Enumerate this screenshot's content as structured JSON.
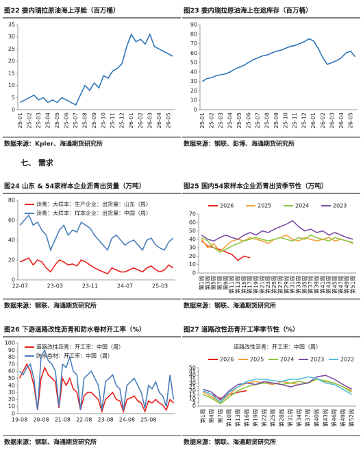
{
  "section_heading": "七、 需求",
  "chart_data": [
    {
      "type": "line",
      "title": "图22 委内瑞拉原油海上浮舱（百万桶）",
      "source": "数据来源：Kpler、海通期货研究所",
      "categories": [
        "25-01",
        null,
        "25-02",
        null,
        "25-03",
        null,
        "25-04",
        null,
        "25-05",
        null,
        "25-06",
        null,
        "25-07",
        null,
        "25-08",
        null,
        "25-09",
        null,
        "25-10",
        null,
        "25-11",
        null,
        "25-12",
        null,
        "26-01",
        null,
        "26-02",
        null,
        "26-03",
        null,
        "26-04",
        null,
        "26-05",
        null
      ],
      "values": [
        3,
        4,
        5,
        6,
        4,
        5,
        3,
        4,
        3,
        5,
        4,
        3,
        2,
        6,
        10,
        8,
        11,
        9,
        14,
        13,
        16,
        17,
        19,
        26,
        31,
        28,
        29,
        27,
        31,
        26,
        25,
        24,
        23,
        22
      ],
      "color": "#2e75b6",
      "ylim": [
        0,
        35
      ],
      "yticks": [
        0,
        5,
        10,
        15,
        20,
        25,
        30,
        35
      ]
    },
    {
      "type": "line",
      "title": "图23 委内瑞拉原油海上在途库存（百万桶）",
      "source": "数据来源：钢联、彭博、海通期货研究所",
      "categories": [
        "25-01",
        null,
        "25-02",
        null,
        "25-03",
        null,
        "25-04",
        null,
        "25-05",
        null,
        "25-06",
        null,
        "25-07",
        null,
        "25-08",
        null,
        "25-09",
        null,
        "25-10",
        null,
        "25-11",
        null,
        "25-12",
        null,
        "26-01",
        null,
        "26-02",
        null,
        "26-03",
        null,
        "26-04",
        null,
        "26-05",
        null
      ],
      "values": [
        30,
        33,
        34,
        36,
        37,
        38,
        40,
        43,
        45,
        47,
        50,
        53,
        55,
        57,
        58,
        60,
        62,
        63,
        65,
        67,
        68,
        70,
        72,
        75,
        73,
        65,
        55,
        48,
        50,
        52,
        55,
        60,
        62,
        56
      ],
      "color": "#2e75b6",
      "ylim": [
        0,
        90
      ],
      "yticks": [
        0,
        10,
        20,
        30,
        40,
        50,
        60,
        70,
        80,
        90
      ]
    },
    {
      "type": "line",
      "title": "图24 山东 & 54家样本企业沥青出货量（万吨）",
      "source": "数据来源：钢联、海通期货研究所",
      "categories": [
        "22-07",
        null,
        null,
        null,
        null,
        null,
        null,
        null,
        "23-03",
        null,
        null,
        null,
        null,
        null,
        null,
        null,
        "23-11",
        null,
        null,
        null,
        null,
        null,
        null,
        null,
        "24-07",
        null,
        null,
        null,
        null,
        null,
        null,
        null,
        "25-03",
        null,
        null,
        null
      ],
      "series": [
        {
          "name": "沥青：大样本：生产企业：出货量：山东（周）",
          "color": "#e8201b",
          "values": [
            18,
            20,
            22,
            15,
            20,
            18,
            12,
            8,
            15,
            20,
            18,
            15,
            16,
            14,
            20,
            18,
            15,
            12,
            10,
            8,
            6,
            12,
            10,
            8,
            8,
            10,
            12,
            10,
            8,
            12,
            14,
            10,
            8,
            10,
            15,
            12
          ]
        },
        {
          "name": "沥青：大样本：样本企业：出货量：中国（周）",
          "color": "#4a7ebb",
          "values": [
            55,
            60,
            65,
            55,
            58,
            50,
            45,
            30,
            40,
            50,
            55,
            45,
            50,
            48,
            58,
            55,
            52,
            45,
            40,
            35,
            30,
            42,
            45,
            40,
            35,
            38,
            40,
            35,
            30,
            40,
            42,
            35,
            32,
            30,
            38,
            42
          ]
        }
      ],
      "ylim": [
        0,
        80
      ],
      "yticks": [
        0,
        20,
        40,
        60,
        80
      ]
    },
    {
      "type": "line",
      "title": "图25 国内54家样本企业沥青出货季节性（万吨）",
      "source": "数据来源：钢联、海通期货研究所",
      "categories": [
        "第1周",
        "第3周",
        "第5周",
        "第7周",
        "第9周",
        "第11周",
        "第13周",
        "第15周",
        "第17周",
        "第19周",
        "第21周",
        "第23周",
        "第25周",
        "第27周",
        "第29周",
        "第31周",
        "第33周",
        "第35周",
        "第37周",
        "第39周",
        "第41周",
        "第43周",
        "第45周",
        "第47周",
        "第49周",
        "第51周"
      ],
      "series": [
        {
          "name": "2026",
          "color": "#e8201b",
          "values": [
            38,
            32,
            30,
            28,
            25,
            22,
            15,
            20,
            18,
            null,
            null,
            null,
            null,
            null,
            null,
            null,
            null,
            null,
            null,
            null,
            null,
            null,
            null,
            null,
            null,
            null
          ]
        },
        {
          "name": "2025",
          "color": "#f4a13b",
          "values": [
            40,
            30,
            35,
            25,
            32,
            38,
            40,
            38,
            42,
            40,
            38,
            35,
            40,
            42,
            45,
            40,
            38,
            42,
            40,
            38,
            40,
            42,
            38,
            40,
            38,
            35
          ]
        },
        {
          "name": "2024",
          "color": "#8dc63f",
          "values": [
            42,
            38,
            30,
            25,
            28,
            32,
            35,
            38,
            40,
            42,
            40,
            38,
            40,
            42,
            40,
            38,
            42,
            40,
            45,
            42,
            40,
            38,
            42,
            40,
            38,
            36
          ]
        },
        {
          "name": "2023",
          "color": "#7b4fa6",
          "values": [
            45,
            40,
            38,
            42,
            45,
            42,
            40,
            45,
            48,
            45,
            50,
            48,
            52,
            55,
            58,
            62,
            55,
            50,
            52,
            48,
            50,
            45,
            48,
            45,
            42,
            40
          ]
        }
      ],
      "ylim": [
        0,
        70
      ],
      "yticks": [
        0,
        10,
        20,
        30,
        40,
        50,
        60,
        70
      ]
    },
    {
      "type": "line",
      "title": "图26 下游道路改性沥青和防水卷材开工率（%）",
      "source": "数据来源：钢联、海通期货研究所",
      "categories": [
        "19-08",
        null,
        null,
        null,
        null,
        null,
        "20-08",
        null,
        null,
        null,
        null,
        null,
        "21-08",
        null,
        null,
        null,
        null,
        null,
        "22-08",
        null,
        null,
        null,
        null,
        null,
        "23-08",
        null,
        null,
        null,
        null,
        null,
        "24-08",
        null,
        null,
        null,
        null,
        null,
        "25-08",
        null,
        null,
        null,
        null,
        null,
        null,
        null
      ],
      "series": [
        {
          "name": "道路改性沥青：开工率：中国（周）",
          "color": "#e8201b",
          "values": [
            50,
            60,
            70,
            60,
            40,
            5,
            50,
            65,
            55,
            50,
            45,
            8,
            50,
            40,
            50,
            35,
            30,
            5,
            25,
            30,
            30,
            25,
            20,
            3,
            20,
            25,
            30,
            20,
            18,
            3,
            20,
            22,
            25,
            18,
            15,
            3,
            18,
            15,
            20,
            15,
            12,
            5,
            20,
            15
          ]
        },
        {
          "name": "防水卷材：开工率：中国（周）",
          "color": "#4a7ebb",
          "values": [
            60,
            55,
            65,
            70,
            50,
            5,
            80,
            90,
            75,
            70,
            60,
            10,
            70,
            65,
            80,
            60,
            55,
            5,
            50,
            55,
            60,
            50,
            40,
            5,
            45,
            50,
            55,
            40,
            35,
            5,
            40,
            45,
            50,
            40,
            30,
            8,
            40,
            35,
            45,
            30,
            25,
            10,
            55,
            20
          ]
        }
      ],
      "ylim": [
        0,
        100
      ],
      "yticks": [
        0,
        10,
        20,
        30,
        40,
        50,
        60,
        70,
        80,
        90,
        100
      ]
    },
    {
      "type": "line",
      "title": "图27 道路改性沥青开工率季节性（%）",
      "subtitle": "道路改性沥青：开工率：中国（周）",
      "source": "数据来源：钢联、海通期货研究所",
      "categories": [
        "第1周",
        "第4周",
        "第7周",
        "第10周",
        "第13周",
        "第16周",
        "第19周",
        "第22周",
        "第25周",
        "第28周",
        "第31周",
        "第34周",
        "第37周",
        "第40周",
        "第43周",
        "第46周",
        "第49周",
        "第52周"
      ],
      "series": [
        {
          "name": "2026",
          "color": "#e8201b",
          "values": [
            20,
            15,
            10,
            15,
            18,
            20,
            null,
            null,
            null,
            null,
            null,
            null,
            null,
            null,
            null,
            null,
            null,
            null
          ]
        },
        {
          "name": "2025",
          "color": "#f4a13b",
          "values": [
            18,
            12,
            5,
            15,
            25,
            30,
            32,
            30,
            28,
            32,
            30,
            28,
            30,
            35,
            32,
            30,
            25,
            20
          ]
        },
        {
          "name": "2024",
          "color": "#8dc63f",
          "values": [
            15,
            10,
            3,
            12,
            20,
            25,
            28,
            30,
            30,
            28,
            30,
            32,
            30,
            35,
            33,
            30,
            25,
            18
          ]
        },
        {
          "name": "2023",
          "color": "#7b4fa6",
          "values": [
            22,
            18,
            8,
            20,
            28,
            30,
            28,
            32,
            30,
            28,
            25,
            28,
            30,
            38,
            40,
            35,
            28,
            22
          ]
        },
        {
          "name": "2022",
          "color": "#4bc0d9",
          "values": [
            20,
            15,
            5,
            18,
            25,
            32,
            35,
            35,
            33,
            32,
            35,
            35,
            38,
            36,
            30,
            28,
            22,
            15
          ]
        }
      ],
      "ylim": [
        0,
        50
      ],
      "yticks": [
        0,
        5,
        10,
        15,
        20,
        25,
        30,
        35,
        40,
        45,
        50
      ]
    }
  ]
}
